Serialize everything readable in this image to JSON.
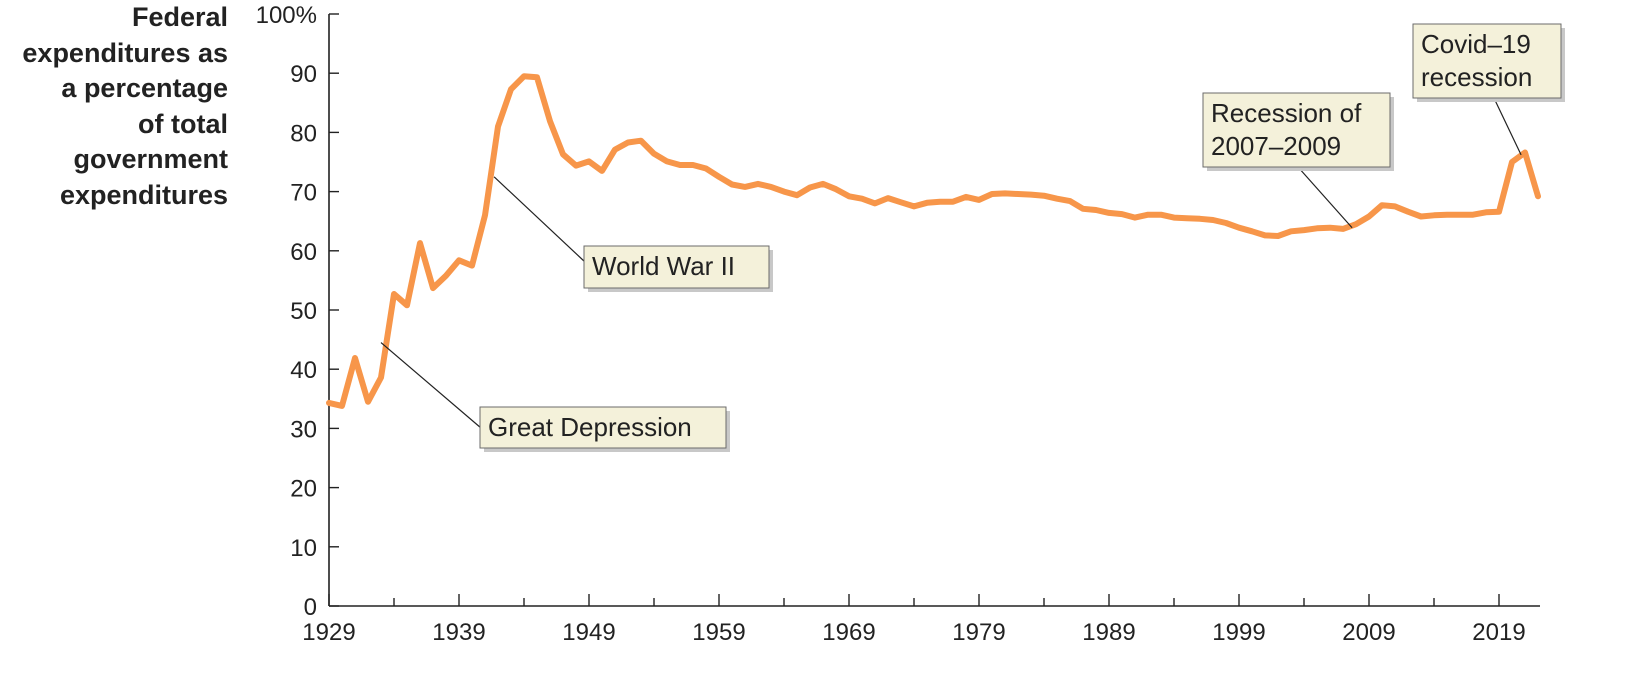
{
  "chart_data": {
    "type": "line",
    "ylabel_lines": [
      "Federal",
      "expenditures as",
      "a percentage",
      "of total",
      "government",
      "expenditures"
    ],
    "xlabel": "",
    "ylim": [
      0,
      100
    ],
    "xlim": [
      1929,
      2022
    ],
    "y_ticks": [
      {
        "value": 0,
        "label": "0"
      },
      {
        "value": 10,
        "label": "10"
      },
      {
        "value": 20,
        "label": "20"
      },
      {
        "value": 30,
        "label": "30"
      },
      {
        "value": 40,
        "label": "40"
      },
      {
        "value": 50,
        "label": "50"
      },
      {
        "value": 60,
        "label": "60"
      },
      {
        "value": 70,
        "label": "70"
      },
      {
        "value": 80,
        "label": "80"
      },
      {
        "value": 90,
        "label": "90"
      },
      {
        "value": 100,
        "label": "100%"
      }
    ],
    "x_ticks": [
      {
        "value": 1929,
        "label": "1929"
      },
      {
        "value": 1939,
        "label": "1939"
      },
      {
        "value": 1949,
        "label": "1949"
      },
      {
        "value": 1959,
        "label": "1959"
      },
      {
        "value": 1969,
        "label": "1969"
      },
      {
        "value": 1979,
        "label": "1979"
      },
      {
        "value": 1989,
        "label": "1989"
      },
      {
        "value": 1999,
        "label": "1999"
      },
      {
        "value": 2009,
        "label": "2009"
      },
      {
        "value": 2019,
        "label": "2019"
      }
    ],
    "line_color": "#f7964a",
    "series": [
      {
        "x": [
          1929,
          1930,
          1931,
          1932,
          1933,
          1934,
          1935,
          1936,
          1937,
          1938,
          1939,
          1940,
          1941,
          1942,
          1943,
          1944,
          1945,
          1946,
          1947,
          1948,
          1949,
          1950,
          1951,
          1952,
          1953,
          1954,
          1955,
          1956,
          1957,
          1958,
          1959,
          1960,
          1961,
          1962,
          1963,
          1964,
          1965,
          1966,
          1967,
          1968,
          1969,
          1970,
          1971,
          1972,
          1973,
          1974,
          1975,
          1976,
          1977,
          1978,
          1979,
          1980,
          1981,
          1982,
          1983,
          1984,
          1985,
          1986,
          1987,
          1988,
          1989,
          1990,
          1991,
          1992,
          1993,
          1994,
          1995,
          1996,
          1997,
          1998,
          1999,
          2000,
          2001,
          2002,
          2003,
          2004,
          2005,
          2006,
          2007,
          2008,
          2009,
          2010,
          2011,
          2012,
          2013,
          2014,
          2015,
          2016,
          2017,
          2018,
          2019,
          2020,
          2021,
          2022
        ],
        "values": [
          34.3,
          33.8,
          41.9,
          34.5,
          38.6,
          52.7,
          50.8,
          61.3,
          53.7,
          55.8,
          58.4,
          57.5,
          66.0,
          81.0,
          87.3,
          89.5,
          89.3,
          81.9,
          76.3,
          74.4,
          75.1,
          73.5,
          77.1,
          78.3,
          78.6,
          76.4,
          75.1,
          74.5,
          74.5,
          73.9,
          72.5,
          71.2,
          70.8,
          71.3,
          70.8,
          70.0,
          69.4,
          70.7,
          71.3,
          70.4,
          69.2,
          68.8,
          68.0,
          68.9,
          68.2,
          67.5,
          68.1,
          68.3,
          68.3,
          69.1,
          68.6,
          69.6,
          69.7,
          69.6,
          69.5,
          69.3,
          68.8,
          68.4,
          67.1,
          66.9,
          66.4,
          66.2,
          65.6,
          66.1,
          66.1,
          65.6,
          65.5,
          65.4,
          65.2,
          64.7,
          63.9,
          63.3,
          62.6,
          62.5,
          63.3,
          63.5,
          63.8,
          63.9,
          63.7,
          64.5,
          65.8,
          67.7,
          67.5,
          66.6,
          65.8,
          66.0,
          66.1,
          66.1,
          66.1,
          66.5,
          66.6,
          75.0,
          76.6,
          69.2
        ]
      }
    ],
    "annotations": [
      {
        "lines": [
          "Great Depression"
        ],
        "x": 1933,
        "y": 44.5
      },
      {
        "lines": [
          "World War II"
        ],
        "x": 1941.7,
        "y": 72.5
      },
      {
        "lines": [
          "Recession of",
          "2007–2009"
        ],
        "x": 2007.7,
        "y": 63.9
      },
      {
        "lines": [
          "Covid–19",
          "recession"
        ],
        "x": 2020.7,
        "y": 76.2
      }
    ]
  }
}
